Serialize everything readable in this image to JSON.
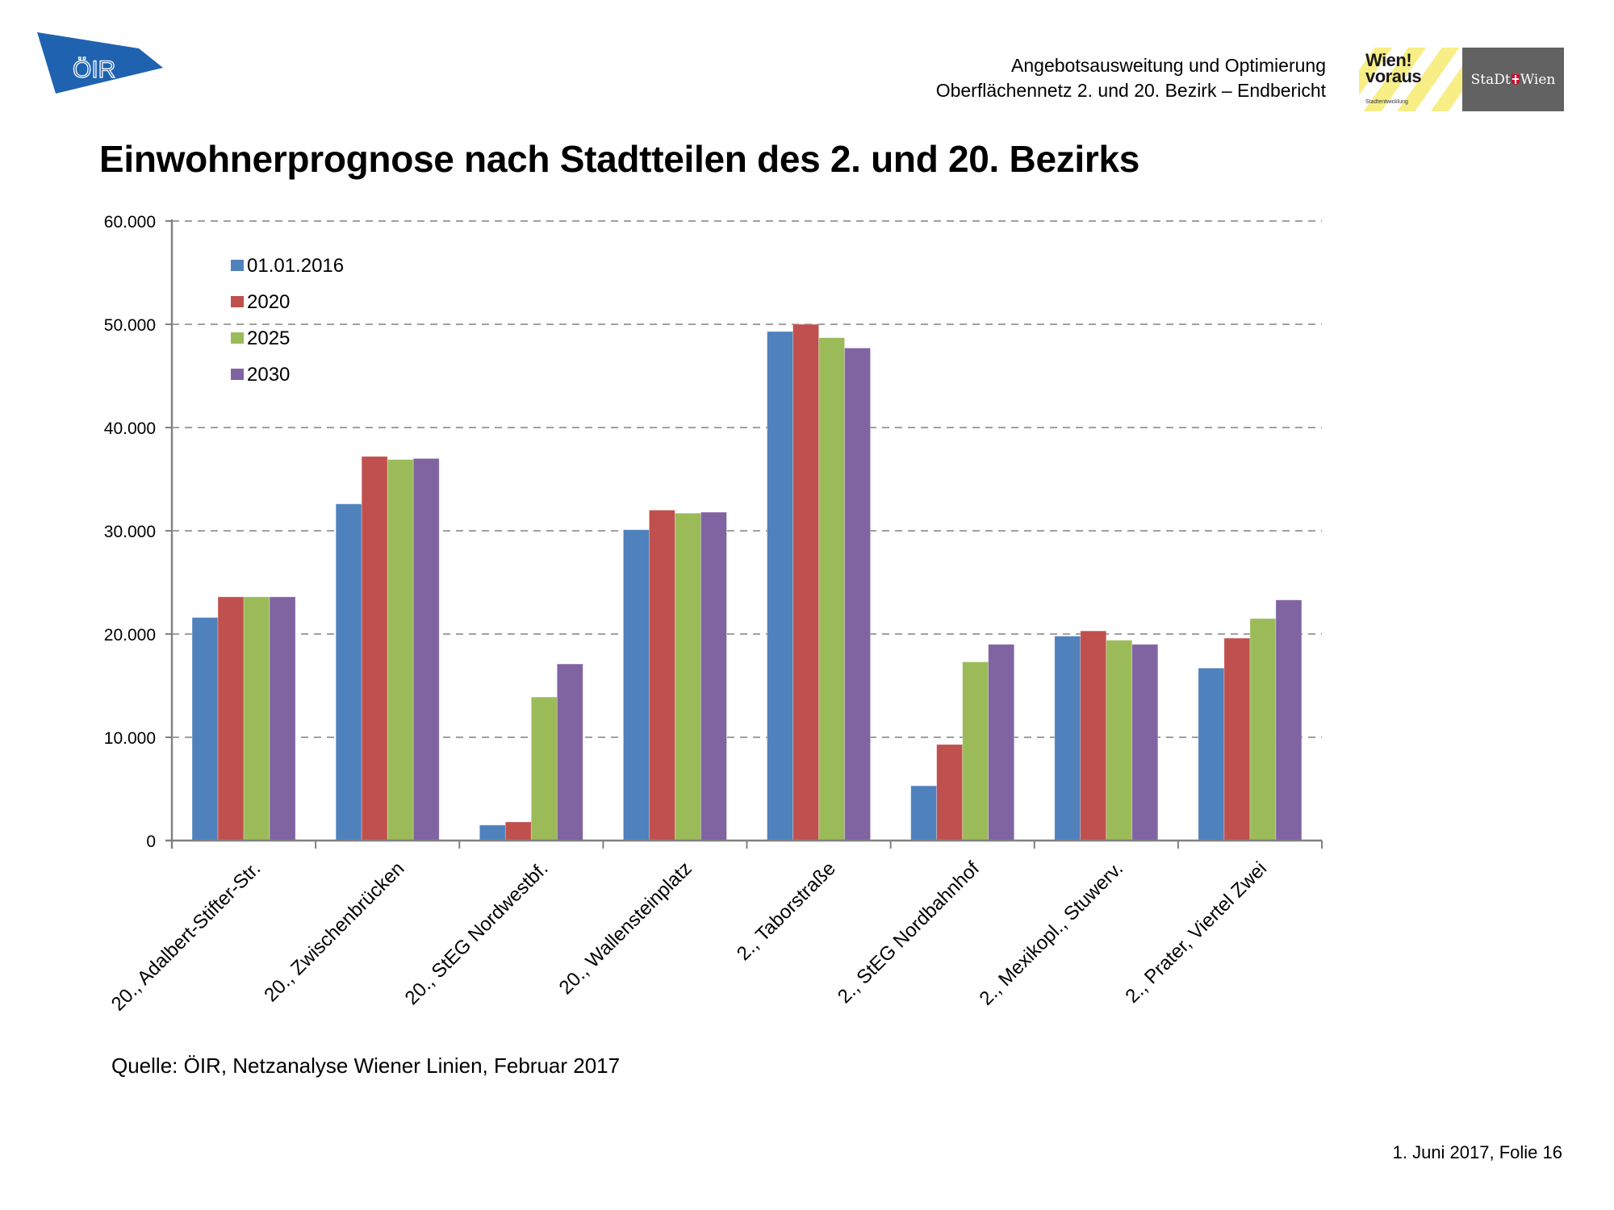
{
  "header": {
    "logo_left_text": "ÖIR",
    "report_line1": "Angebotsausweitung und Optimierung",
    "report_line2": "Oberflächennetz 2. und 20. Bezirk – Endbericht",
    "logo_wien_voraus_title": "Wien! voraus",
    "logo_wien_voraus_sub": "Stadtentwicklung",
    "logo_stadt_wien_left": "StaDt",
    "logo_stadt_wien_right": "Wien"
  },
  "page_title": "Einwohnerprognose nach Stadtteilen des 2. und 20. Bezirks",
  "source": "Quelle: ÖIR, Netzanalyse Wiener Linien, Februar 2017",
  "footer": "1. Juni 2017, Folie 16",
  "colors": {
    "oir_blue": "#1f63b0",
    "gridline": "#808080"
  },
  "chart_data": {
    "type": "bar",
    "title": "Einwohnerprognose nach Stadtteilen des 2. und 20. Bezirks",
    "xlabel": "",
    "ylabel": "",
    "ylim": [
      0,
      60000
    ],
    "yticks": [
      0,
      10000,
      20000,
      30000,
      40000,
      50000,
      60000
    ],
    "ytick_labels": [
      "0",
      "10.000",
      "20.000",
      "30.000",
      "40.000",
      "50.000",
      "60.000"
    ],
    "grid": "horizontal dashed",
    "legend_position": "top-left inside",
    "categories": [
      "20., Adalbert-Stifter-Str.",
      "20., Zwischenbrücken",
      "20., StEG Nordwestbf.",
      "20., Wallensteinplatz",
      "2., Taborstraße",
      "2., StEG Nordbahnhof",
      "2., Mexikopl., Stuwerv.",
      "2., Prater, Viertel Zwei"
    ],
    "series": [
      {
        "name": "01.01.2016",
        "color": "#4f81bd",
        "values": [
          21600,
          32600,
          1500,
          30100,
          49300,
          5300,
          19800,
          16700
        ]
      },
      {
        "name": "2020",
        "color": "#c0504d",
        "values": [
          23600,
          37200,
          1800,
          32000,
          50000,
          9300,
          20300,
          19600
        ]
      },
      {
        "name": "2025",
        "color": "#9bbb59",
        "values": [
          23600,
          36900,
          13900,
          31700,
          48700,
          17300,
          19400,
          21500
        ]
      },
      {
        "name": "2030",
        "color": "#8064a2",
        "values": [
          23600,
          37000,
          17100,
          31800,
          47700,
          19000,
          19000,
          23300
        ]
      }
    ]
  }
}
